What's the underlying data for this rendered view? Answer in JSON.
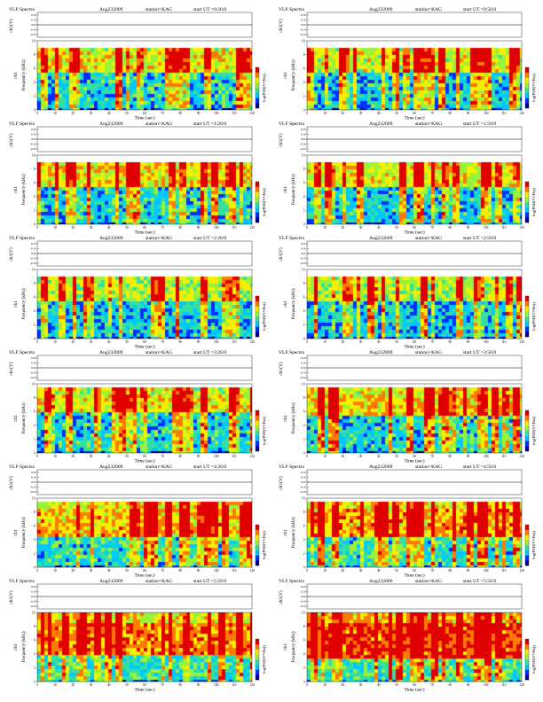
{
  "page": {
    "title": "VLF Spectra"
  },
  "panel_labels": {
    "title": "VLF Spectra",
    "date": "Aug232009",
    "station": "station=KAG",
    "xlabel": "Time (sec)",
    "ylabel_ch": "ch1(V)",
    "ylabel_freq": "Frequency (kHz)",
    "ylabel_prefix": "ch1",
    "colorbar_label": "log(PSD(V²/Hz))"
  },
  "colors": {
    "spectrogram_scale": [
      "#00008b",
      "#0030ff",
      "#00c8ff",
      "#33e0a0",
      "#9af23a",
      "#f5f000",
      "#ff7a00",
      "#e00000"
    ],
    "background": "#ffffff"
  },
  "chart_data": [
    {
      "type": "heatmap",
      "title": "VLF Spectra",
      "date": "Aug232009",
      "station": "station=KAG",
      "start_label": "start UT =0:20:0",
      "xlabel": "Time (sec)",
      "ylabel": "Frequency (kHz)",
      "xlim": [
        0,
        120
      ],
      "ylim": [
        0,
        10
      ],
      "xticks": [
        0,
        10,
        20,
        30,
        40,
        50,
        60,
        70,
        80,
        90,
        100,
        110,
        120
      ],
      "yticks": [
        0,
        2,
        4,
        6,
        8,
        10
      ],
      "ch_ylabel": "ch1(V)",
      "ch_ticks": [
        "0.20",
        "0.10",
        "0.00",
        "-0.10",
        "-0.20"
      ],
      "colorbar_label": "log(PSD(V²/Hz))",
      "band_top_khz": 9.4,
      "band_low_khz": 5.8,
      "band_high_khz": 8.8,
      "intensity": 0.55
    },
    {
      "type": "heatmap",
      "title": "VLF Spectra",
      "date": "Aug232009",
      "station": "station=KAG",
      "start_label": "start UT =0:50:0",
      "xlabel": "Time (sec)",
      "ylabel": "Frequency (kHz)",
      "xlim": [
        0,
        120
      ],
      "ylim": [
        0,
        10
      ],
      "xticks": [
        0,
        10,
        20,
        30,
        40,
        50,
        60,
        70,
        80,
        90,
        100,
        110,
        120
      ],
      "yticks": [
        0,
        2,
        4,
        6,
        8,
        10
      ],
      "ch_ylabel": "ch1(V)",
      "ch_ticks": [
        "0.20",
        "0.10",
        "0.00",
        "-0.10",
        "-0.20"
      ],
      "colorbar_label": "log(PSD(V²/Hz))",
      "band_top_khz": 9.4,
      "band_low_khz": 5.8,
      "band_high_khz": 8.8,
      "intensity": 0.5
    },
    {
      "type": "heatmap",
      "title": "VLF Spectra",
      "date": "Aug232009",
      "station": "station=KAG",
      "start_label": "start UT =1:20:0",
      "xlabel": "Time (sec)",
      "ylabel": "Frequency (kHz)",
      "xlim": [
        0,
        120
      ],
      "ylim": [
        0,
        10
      ],
      "xticks": [
        0,
        10,
        20,
        30,
        40,
        50,
        60,
        70,
        80,
        90,
        100,
        110,
        120
      ],
      "yticks": [
        0,
        2,
        4,
        6,
        8,
        10
      ],
      "ch_ylabel": "ch1(V)",
      "ch_ticks": [
        "0.20",
        "0.10",
        "0.00",
        "-0.10",
        "-0.20"
      ],
      "colorbar_label": "log(PSD(V²/Hz))",
      "band_top_khz": 9.4,
      "band_low_khz": 5.8,
      "band_high_khz": 9.0,
      "intensity": 0.6
    },
    {
      "type": "heatmap",
      "title": "VLF Spectra",
      "date": "Aug232009",
      "station": "station=KAG",
      "start_label": "start UT =1:50:0",
      "xlabel": "Time (sec)",
      "ylabel": "Frequency (kHz)",
      "xlim": [
        0,
        120
      ],
      "ylim": [
        0,
        10
      ],
      "xticks": [
        0,
        10,
        20,
        30,
        40,
        50,
        60,
        70,
        80,
        90,
        100,
        110,
        120
      ],
      "yticks": [
        0,
        2,
        4,
        6,
        8,
        10
      ],
      "ch_ylabel": "ch1(V)",
      "ch_ticks": [
        "0.20",
        "0.10",
        "0.00",
        "-0.10",
        "-0.20"
      ],
      "colorbar_label": "log(PSD(V²/Hz))",
      "band_top_khz": 9.4,
      "band_low_khz": 5.8,
      "band_high_khz": 9.0,
      "intensity": 0.55
    },
    {
      "type": "heatmap",
      "title": "VLF Spectra",
      "date": "Aug232009",
      "station": "station=KAG",
      "start_label": "start UT =2:20:0",
      "xlabel": "Time (sec)",
      "ylabel": "Frequency (kHz)",
      "xlim": [
        0,
        120
      ],
      "ylim": [
        0,
        10
      ],
      "xticks": [
        0,
        10,
        20,
        30,
        40,
        50,
        60,
        70,
        80,
        90,
        100,
        110,
        120
      ],
      "yticks": [
        0,
        2,
        4,
        6,
        8,
        10
      ],
      "ch_ylabel": "ch1(V)",
      "ch_ticks": [
        "0.20",
        "0.10",
        "0.00",
        "-0.10",
        "-0.20"
      ],
      "colorbar_label": "log(PSD(V²/Hz))",
      "band_top_khz": 9.4,
      "band_low_khz": 5.5,
      "band_high_khz": 9.2,
      "intensity": 0.45
    },
    {
      "type": "heatmap",
      "title": "VLF Spectra",
      "date": "Aug232009",
      "station": "station=KAG",
      "start_label": "start UT =2:50:0",
      "xlabel": "Time (sec)",
      "ylabel": "Frequency (kHz)",
      "xlim": [
        0,
        120
      ],
      "ylim": [
        0,
        10
      ],
      "xticks": [
        0,
        10,
        20,
        30,
        40,
        50,
        60,
        70,
        80,
        90,
        100,
        110,
        120
      ],
      "yticks": [
        0,
        2,
        4,
        6,
        8,
        10
      ],
      "ch_ylabel": "ch1(V)",
      "ch_ticks": [
        "0.20",
        "0.10",
        "0.00",
        "-0.10",
        "-0.20"
      ],
      "colorbar_label": "log(PSD(V²/Hz))",
      "band_top_khz": 9.4,
      "band_low_khz": 5.8,
      "band_high_khz": 9.0,
      "intensity": 0.45
    },
    {
      "type": "heatmap",
      "title": "VLF Spectra",
      "date": "Aug232009",
      "station": "station=KAG",
      "start_label": "start UT =3:20:0",
      "xlabel": "Time (sec)",
      "ylabel": "Frequency (kHz)",
      "xlim": [
        0,
        120
      ],
      "ylim": [
        0,
        10
      ],
      "xticks": [
        0,
        10,
        20,
        30,
        40,
        50,
        60,
        70,
        80,
        90,
        100,
        110,
        120
      ],
      "yticks": [
        0,
        2,
        4,
        6,
        8,
        10
      ],
      "ch_ylabel": "ch1(V)",
      "ch_ticks": [
        "0.20",
        "0.10",
        "0.00",
        "-0.10",
        "-0.20"
      ],
      "colorbar_label": "log(PSD(V²/Hz))",
      "band_top_khz": 9.6,
      "band_low_khz": 6.0,
      "band_high_khz": 8.8,
      "intensity": 0.55
    },
    {
      "type": "heatmap",
      "title": "VLF Spectra",
      "date": "Aug232009",
      "station": "station=KAG",
      "start_label": "start UT =3:50:0",
      "xlabel": "Time (sec)",
      "ylabel": "Frequency (kHz)",
      "xlim": [
        0,
        120
      ],
      "ylim": [
        0,
        10
      ],
      "xticks": [
        0,
        10,
        20,
        30,
        40,
        50,
        60,
        70,
        80,
        90,
        100,
        110,
        120
      ],
      "yticks": [
        0,
        2,
        4,
        6,
        8,
        10
      ],
      "ch_ylabel": "ch1(V)",
      "ch_ticks": [
        "0.20",
        "0.10",
        "0.00",
        "-0.10",
        "-0.20"
      ],
      "colorbar_label": "log(PSD(V²/Hz))",
      "band_top_khz": 9.6,
      "band_low_khz": 5.8,
      "band_high_khz": 8.8,
      "intensity": 0.65
    },
    {
      "type": "heatmap",
      "title": "VLF Spectra",
      "date": "Aug232009",
      "station": "station=KAG",
      "start_label": "start UT =4:20:0",
      "xlabel": "Time (sec)",
      "ylabel": "Frequency (kHz)",
      "xlim": [
        0,
        120
      ],
      "ylim": [
        0,
        10
      ],
      "xticks": [
        0,
        10,
        20,
        30,
        40,
        50,
        60,
        70,
        80,
        90,
        100,
        110,
        120
      ],
      "yticks": [
        0,
        2,
        4,
        6,
        8,
        10
      ],
      "ch_ylabel": "ch1(V)",
      "ch_ticks": [
        "0.20",
        "0.10",
        "0.00",
        "-0.10",
        "-0.20"
      ],
      "colorbar_label": "log(PSD(V²/Hz))",
      "band_top_khz": 9.8,
      "band_low_khz": 4.6,
      "band_high_khz": 8.6,
      "intensity": 0.7
    },
    {
      "type": "heatmap",
      "title": "VLF Spectra",
      "date": "Aug232009",
      "station": "station=KAG",
      "start_label": "start UT =4:50:0",
      "xlabel": "Time (sec)",
      "ylabel": "Frequency (kHz)",
      "xlim": [
        0,
        120
      ],
      "ylim": [
        0,
        10
      ],
      "xticks": [
        0,
        10,
        20,
        30,
        40,
        50,
        60,
        70,
        80,
        90,
        100,
        110,
        120
      ],
      "yticks": [
        0,
        2,
        4,
        6,
        8,
        10
      ],
      "ch_ylabel": "ch1(V)",
      "ch_ticks": [
        "0.20",
        "0.10",
        "0.00",
        "-0.10",
        "-0.20"
      ],
      "colorbar_label": "log(PSD(V²/Hz))",
      "band_top_khz": 9.8,
      "band_low_khz": 4.4,
      "band_high_khz": 8.8,
      "intensity": 0.75
    },
    {
      "type": "heatmap",
      "title": "VLF Spectra",
      "date": "Aug232009",
      "station": "station=KAG",
      "start_label": "start UT =5:20:0",
      "xlabel": "Time (sec)",
      "ylabel": "Frequency (kHz)",
      "xlim": [
        0,
        120
      ],
      "ylim": [
        0,
        10
      ],
      "xticks": [
        0,
        10,
        20,
        30,
        40,
        50,
        60,
        70,
        80,
        90,
        100,
        110,
        120
      ],
      "yticks": [
        0,
        2,
        4,
        6,
        8,
        10
      ],
      "ch_ylabel": "ch1(V)",
      "ch_ticks": [
        "0.20",
        "0.10",
        "0.00",
        "-0.10",
        "-0.20"
      ],
      "colorbar_label": "log(PSD(V²/Hz))",
      "band_top_khz": 10.0,
      "band_low_khz": 4.2,
      "band_high_khz": 8.6,
      "intensity": 0.85
    },
    {
      "type": "heatmap",
      "title": "VLF Spectra",
      "date": "Aug232009",
      "station": "station=KAG",
      "start_label": "start UT =5:50:0",
      "xlabel": "Time (sec)",
      "ylabel": "Frequency (kHz)",
      "xlim": [
        0,
        120
      ],
      "ylim": [
        0,
        10
      ],
      "xticks": [
        0,
        10,
        20,
        30,
        40,
        50,
        60,
        70,
        80,
        90,
        100,
        110,
        120
      ],
      "yticks": [
        0,
        2,
        4,
        6,
        8,
        10
      ],
      "ch_ylabel": "ch1(V)",
      "ch_ticks": [
        "0.20",
        "0.10",
        "0.00",
        "-0.10",
        "-0.20"
      ],
      "colorbar_label": "log(PSD(V²/Hz))",
      "band_top_khz": 10.0,
      "band_low_khz": 3.8,
      "band_high_khz": 8.8,
      "intensity": 0.95
    }
  ]
}
